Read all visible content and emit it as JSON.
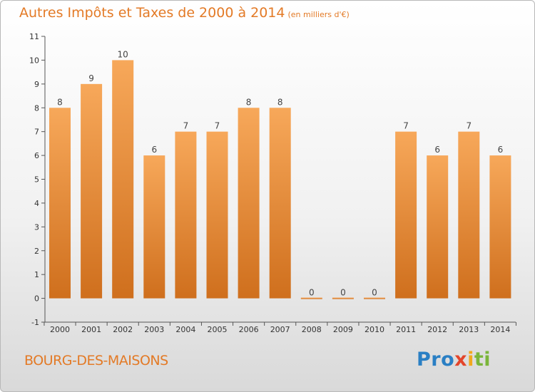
{
  "header": {
    "title": "Autres Impôts et Taxes de 2000 à 2014",
    "unit": "(en milliers d'€)"
  },
  "footer": {
    "city": "BOURG-DES-MAISONS",
    "logo": [
      "Pro",
      "x",
      "i",
      "ti"
    ]
  },
  "colors": {
    "bar_top": "#f7a85a",
    "bar_bottom": "#cf6f1d",
    "accent": "#e37a26"
  },
  "chart_data": {
    "type": "bar",
    "categories": [
      "2000",
      "2001",
      "2002",
      "2003",
      "2004",
      "2005",
      "2006",
      "2007",
      "2008",
      "2009",
      "2010",
      "2011",
      "2012",
      "2013",
      "2014"
    ],
    "values": [
      8,
      9,
      10,
      6,
      7,
      7,
      8,
      8,
      0,
      0,
      0,
      7,
      6,
      7,
      6
    ],
    "data_labels": [
      "8",
      "9",
      "10",
      "6",
      "7",
      "7",
      "8",
      "8",
      "0",
      "0",
      "0",
      "7",
      "6",
      "7",
      "6"
    ],
    "yticks": [
      -1,
      0,
      1,
      2,
      3,
      4,
      5,
      6,
      7,
      8,
      9,
      10,
      11
    ],
    "ytick_labels": [
      "-1",
      "0",
      "1",
      "2",
      "3",
      "4",
      "5",
      "6",
      "7",
      "8",
      "9",
      "10",
      "11"
    ],
    "ylim": [
      -1,
      11
    ],
    "grid": false,
    "title": "Autres Impôts et Taxes de 2000 à 2014"
  }
}
